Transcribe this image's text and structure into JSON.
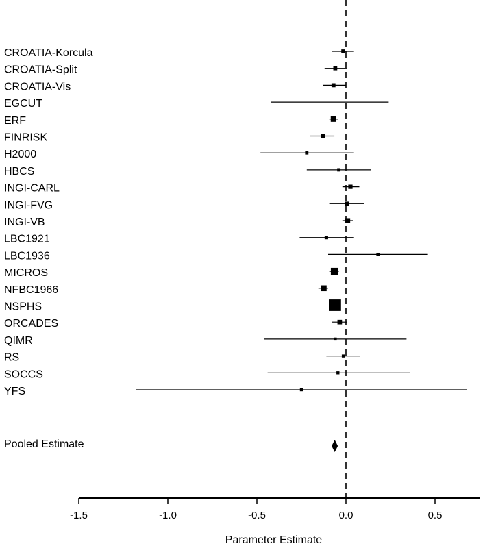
{
  "chart_data": {
    "type": "forest",
    "xlabel": "Parameter Estimate",
    "xlim": [
      -1.5,
      0.75
    ],
    "xticks": [
      -1.5,
      -1.0,
      -0.5,
      0.0,
      0.5
    ],
    "xtick_labels": [
      "-1.5",
      "-1.0",
      "-0.5",
      "0.0",
      "0.5"
    ],
    "reference_line": 0,
    "studies": [
      {
        "label": "CROATIA-Korcula",
        "estimate": -0.015,
        "lower": -0.08,
        "upper": 0.045,
        "weight": 1.2
      },
      {
        "label": "CROATIA-Split",
        "estimate": -0.06,
        "lower": -0.12,
        "upper": 0.005,
        "weight": 1.2
      },
      {
        "label": "CROATIA-Vis",
        "estimate": -0.07,
        "lower": -0.13,
        "upper": 0.0,
        "weight": 1.2
      },
      {
        "label": "EGCUT",
        "estimate": null,
        "lower": -0.42,
        "upper": 0.24,
        "weight": 0.3
      },
      {
        "label": "ERF",
        "estimate": -0.07,
        "lower": -0.09,
        "upper": -0.045,
        "weight": 2.2
      },
      {
        "label": "FINRISK",
        "estimate": -0.13,
        "lower": -0.2,
        "upper": -0.065,
        "weight": 1.2
      },
      {
        "label": "H2000",
        "estimate": -0.22,
        "lower": -0.48,
        "upper": 0.045,
        "weight": 0.8
      },
      {
        "label": "HBCS",
        "estimate": -0.04,
        "lower": -0.22,
        "upper": 0.14,
        "weight": 0.8
      },
      {
        "label": "INGI-CARL",
        "estimate": 0.025,
        "lower": -0.02,
        "upper": 0.075,
        "weight": 1.4
      },
      {
        "label": "INGI-FVG",
        "estimate": 0.005,
        "lower": -0.09,
        "upper": 0.1,
        "weight": 1.2
      },
      {
        "label": "INGI-VB",
        "estimate": 0.01,
        "lower": -0.02,
        "upper": 0.04,
        "weight": 1.8
      },
      {
        "label": "LBC1921",
        "estimate": -0.11,
        "lower": -0.26,
        "upper": 0.045,
        "weight": 0.9
      },
      {
        "label": "LBC1936",
        "estimate": 0.18,
        "lower": -0.1,
        "upper": 0.46,
        "weight": 0.8
      },
      {
        "label": "MICROS",
        "estimate": -0.065,
        "lower": -0.09,
        "upper": -0.04,
        "weight": 3.2
      },
      {
        "label": "NFBC1966",
        "estimate": -0.125,
        "lower": -0.155,
        "upper": -0.1,
        "weight": 2.4
      },
      {
        "label": "NSPHS",
        "estimate": -0.06,
        "lower": -0.07,
        "upper": -0.045,
        "weight": 6.0
      },
      {
        "label": "ORCADES",
        "estimate": -0.035,
        "lower": -0.08,
        "upper": 0.005,
        "weight": 1.6
      },
      {
        "label": "QIMR",
        "estimate": -0.06,
        "lower": -0.46,
        "upper": 0.34,
        "weight": 0.6
      },
      {
        "label": "RS",
        "estimate": -0.015,
        "lower": -0.11,
        "upper": 0.08,
        "weight": 0.6
      },
      {
        "label": "SOCCS",
        "estimate": -0.045,
        "lower": -0.44,
        "upper": 0.36,
        "weight": 0.6
      },
      {
        "label": "YFS",
        "estimate": -0.25,
        "lower": -1.18,
        "upper": 0.68,
        "weight": 0.6
      }
    ],
    "pooled": {
      "label": "Pooled Estimate",
      "estimate": -0.063,
      "lower": -0.072,
      "upper": -0.054
    }
  }
}
